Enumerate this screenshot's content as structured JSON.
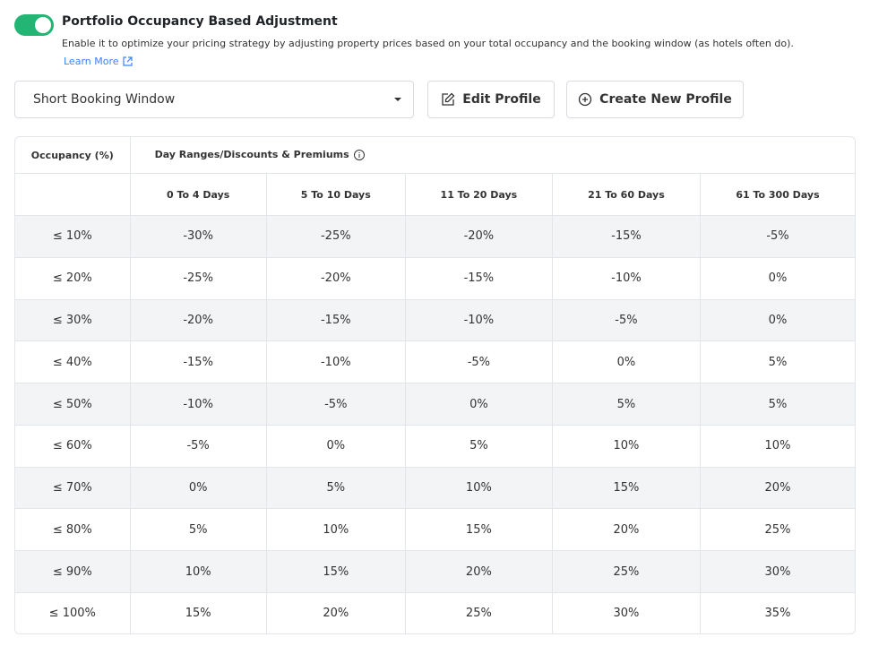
{
  "header": {
    "title": "Portfolio Occupancy Based Adjustment",
    "description": "Enable it to optimize your pricing strategy by adjusting property prices based on your total occupancy and the booking window (as hotels often do).",
    "learn_more": "Learn More"
  },
  "controls": {
    "profile_select": "Short Booking Window",
    "edit_button": "Edit Profile",
    "create_button": "Create New Profile"
  },
  "table": {
    "occupancy_header": "Occupancy (%)",
    "group_header": "Day Ranges/Discounts & Premiums",
    "columns": [
      "0 To 4 Days",
      "5 To 10 Days",
      "11 To 20 Days",
      "21 To 60 Days",
      "61 To 300 Days"
    ],
    "rows": [
      [
        "≤ 10%",
        "-30%",
        "-25%",
        "-20%",
        "-15%",
        "-5%"
      ],
      [
        "≤ 20%",
        "-25%",
        "-20%",
        "-15%",
        "-10%",
        "0%"
      ],
      [
        "≤ 30%",
        "-20%",
        "-15%",
        "-10%",
        "-5%",
        "0%"
      ],
      [
        "≤ 40%",
        "-15%",
        "-10%",
        "-5%",
        "0%",
        "5%"
      ],
      [
        "≤ 50%",
        "-10%",
        "-5%",
        "0%",
        "5%",
        "5%"
      ],
      [
        "≤ 60%",
        "-5%",
        "0%",
        "5%",
        "10%",
        "10%"
      ],
      [
        "≤ 70%",
        "0%",
        "5%",
        "10%",
        "15%",
        "20%"
      ],
      [
        "≤ 80%",
        "5%",
        "10%",
        "15%",
        "20%",
        "25%"
      ],
      [
        "≤ 90%",
        "10%",
        "15%",
        "20%",
        "25%",
        "30%"
      ],
      [
        "≤ 100%",
        "15%",
        "20%",
        "25%",
        "30%",
        "35%"
      ]
    ]
  }
}
